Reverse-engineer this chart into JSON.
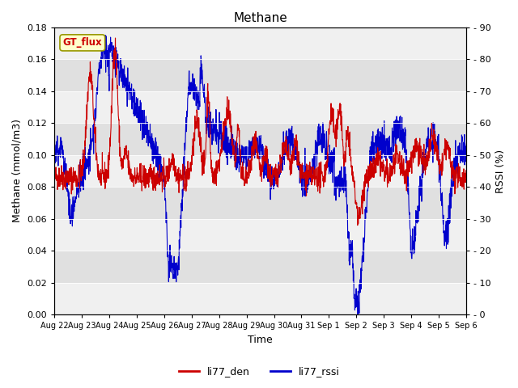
{
  "title": "Methane",
  "ylabel_left": "Methane (mmol/m3)",
  "ylabel_right": "RSSI (%)",
  "xlabel": "Time",
  "ylim_left": [
    0.0,
    0.18
  ],
  "ylim_right": [
    0,
    90
  ],
  "yticks_left": [
    0.0,
    0.02,
    0.04,
    0.06,
    0.08,
    0.1,
    0.12,
    0.14,
    0.16,
    0.18
  ],
  "yticks_right": [
    0,
    10,
    20,
    30,
    40,
    50,
    60,
    70,
    80,
    90
  ],
  "xtick_labels": [
    "Aug 22",
    "Aug 23",
    "Aug 24",
    "Aug 25",
    "Aug 26",
    "Aug 27",
    "Aug 28",
    "Aug 29",
    "Aug 30",
    "Aug 31",
    "Sep 1",
    "Sep 2",
    "Sep 3",
    "Sep 4",
    "Sep 5",
    "Sep 6"
  ],
  "color_red": "#cc0000",
  "color_blue": "#0000cc",
  "legend_label_red": "li77_den",
  "legend_label_blue": "li77_rssi",
  "gt_flux_label": "GT_flux",
  "fig_bg": "#ffffff",
  "band_light": "#f0f0f0",
  "band_dark": "#e0e0e0",
  "title_fontsize": 11,
  "axis_fontsize": 9,
  "tick_fontsize": 8,
  "xtick_fontsize": 7
}
